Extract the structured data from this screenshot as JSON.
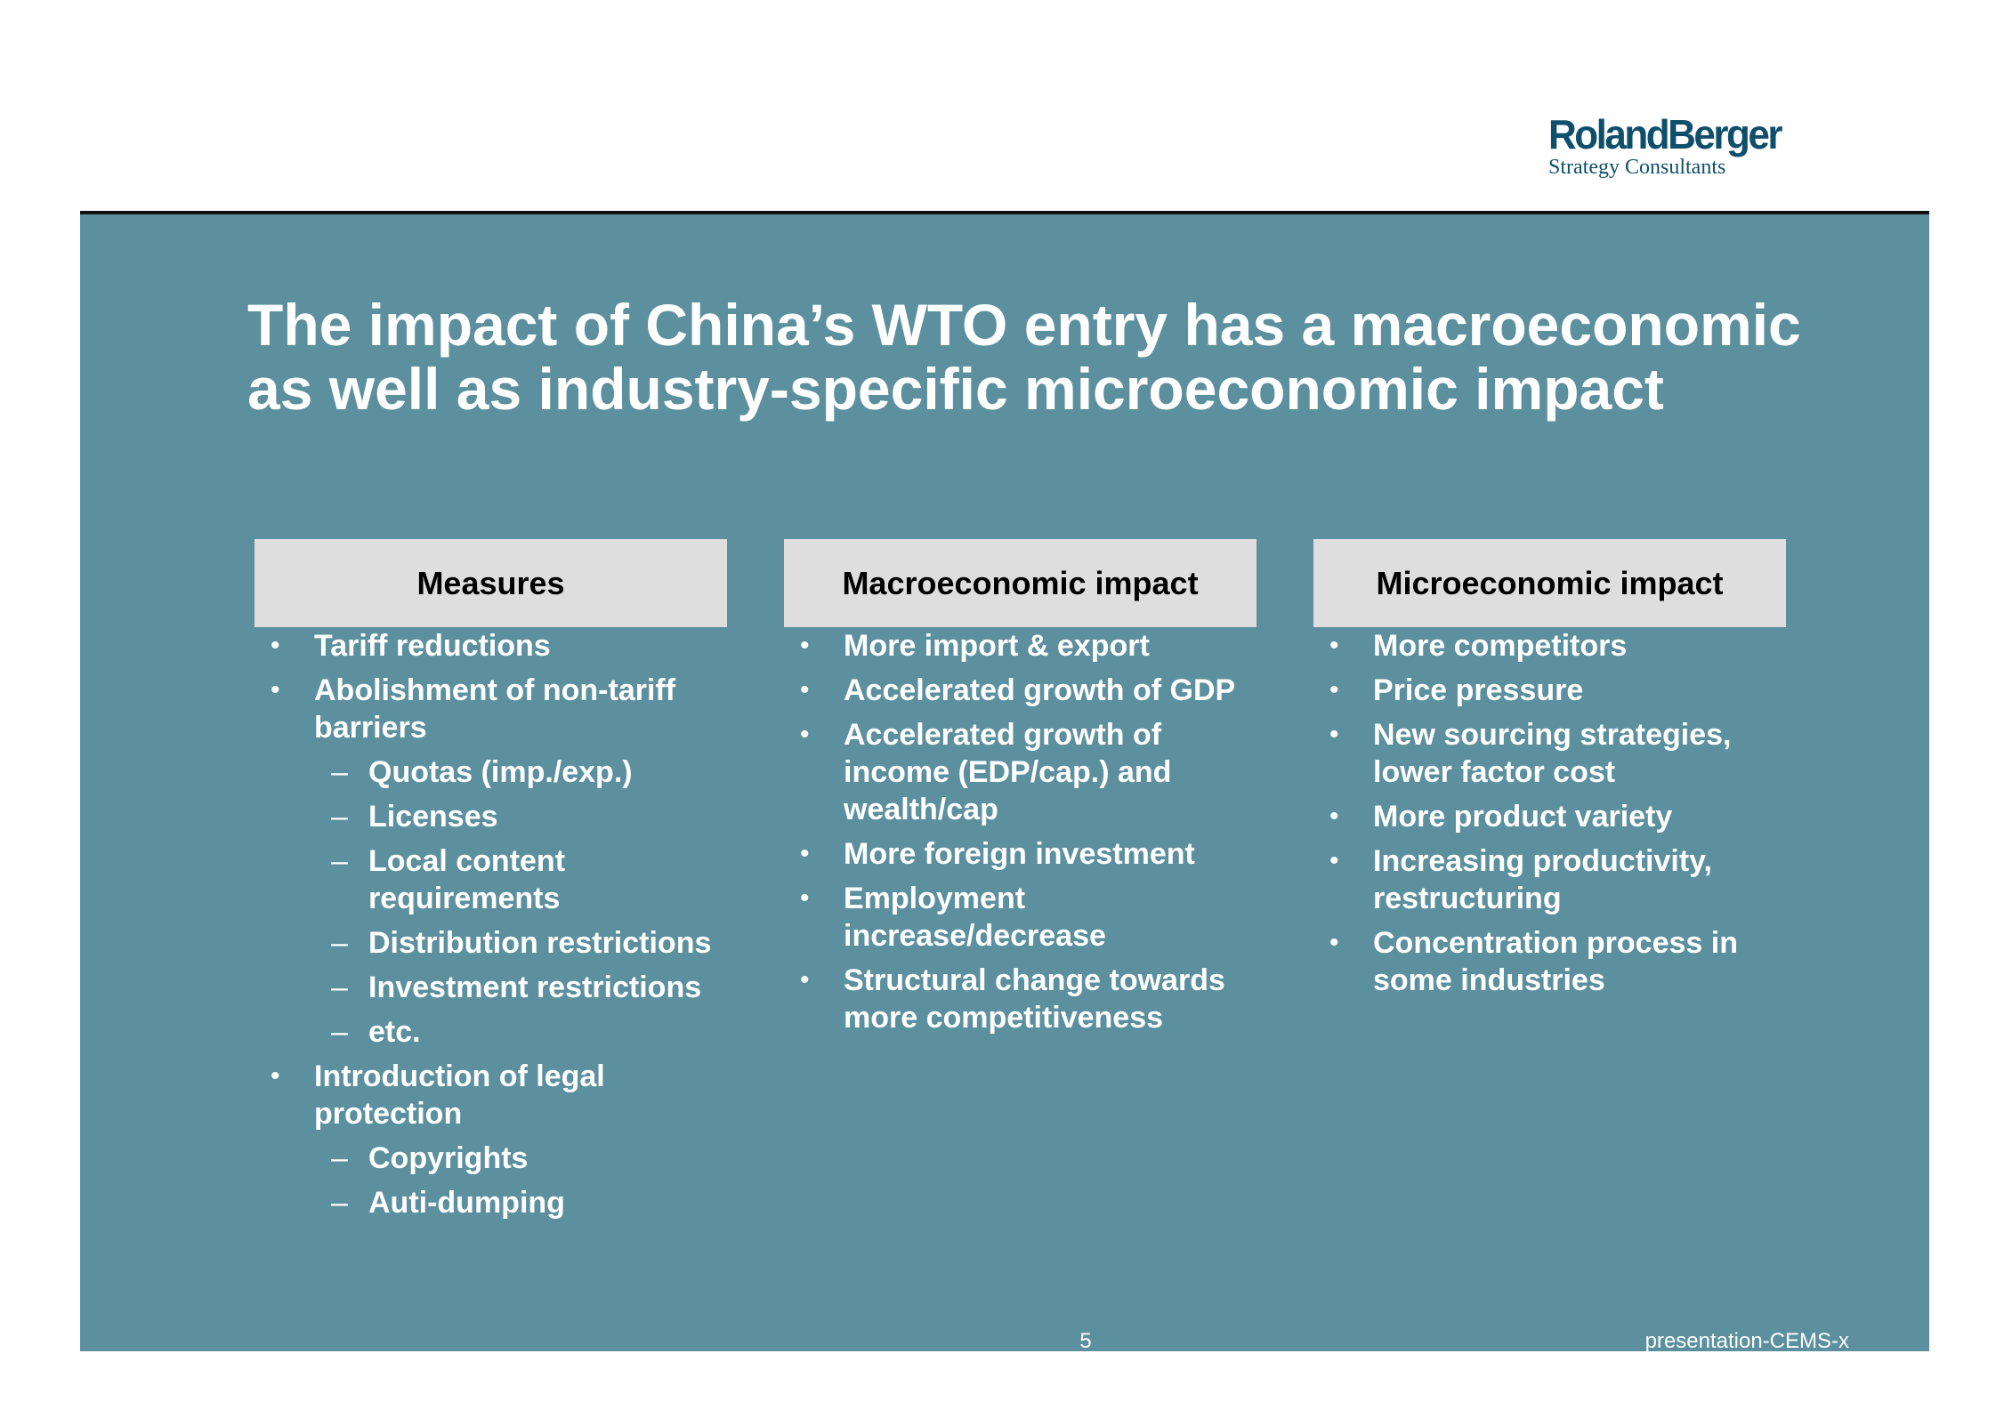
{
  "logo": {
    "name": "RolandBerger",
    "tagline": "Strategy Consultants"
  },
  "title": {
    "line1": "The impact of China’s WTO entry has a macroeconomic",
    "line2": "as well as industry-specific microeconomic impact"
  },
  "columns": [
    {
      "header": "Measures",
      "items": [
        {
          "level": 1,
          "text": "Tariff reductions"
        },
        {
          "level": 1,
          "text": "Abolishment of non-tariff barriers"
        },
        {
          "level": 2,
          "text": "Quotas (imp./exp.)"
        },
        {
          "level": 2,
          "text": "Licenses"
        },
        {
          "level": 2,
          "text": "Local content requirements"
        },
        {
          "level": 2,
          "text": "Distribution restrictions"
        },
        {
          "level": 2,
          "text": "Investment restrictions"
        },
        {
          "level": 2,
          "text": "etc."
        },
        {
          "level": 1,
          "text": "Introduction of legal protection"
        },
        {
          "level": 2,
          "text": "Copyrights"
        },
        {
          "level": 2,
          "text": "Auti-dumping"
        }
      ]
    },
    {
      "header": "Macroeconomic impact",
      "items": [
        {
          "level": 1,
          "text": "More import & export"
        },
        {
          "level": 1,
          "text": "Accelerated growth of GDP"
        },
        {
          "level": 1,
          "text": "Accelerated growth of income (EDP/cap.) and wealth/cap"
        },
        {
          "level": 1,
          "text": "More foreign investment"
        },
        {
          "level": 1,
          "text": "Employment increase/decrease"
        },
        {
          "level": 1,
          "text": "Structural change towards more competitiveness"
        }
      ]
    },
    {
      "header": "Microeconomic impact",
      "items": [
        {
          "level": 1,
          "text": "More competitors"
        },
        {
          "level": 1,
          "text": "Price pressure"
        },
        {
          "level": 1,
          "text": "New sourcing strategies, lower factor cost"
        },
        {
          "level": 1,
          "text": "More product variety"
        },
        {
          "level": 1,
          "text": "Increasing productivity, restructuring"
        },
        {
          "level": 1,
          "text": "Concentration process in some industries"
        }
      ]
    }
  ],
  "footer": {
    "page_number": "5",
    "reference": "presentation-CEMS-x"
  },
  "colors": {
    "panel": "#5c909e",
    "header_box": "#dedede",
    "logo": "#0f4f6b"
  }
}
